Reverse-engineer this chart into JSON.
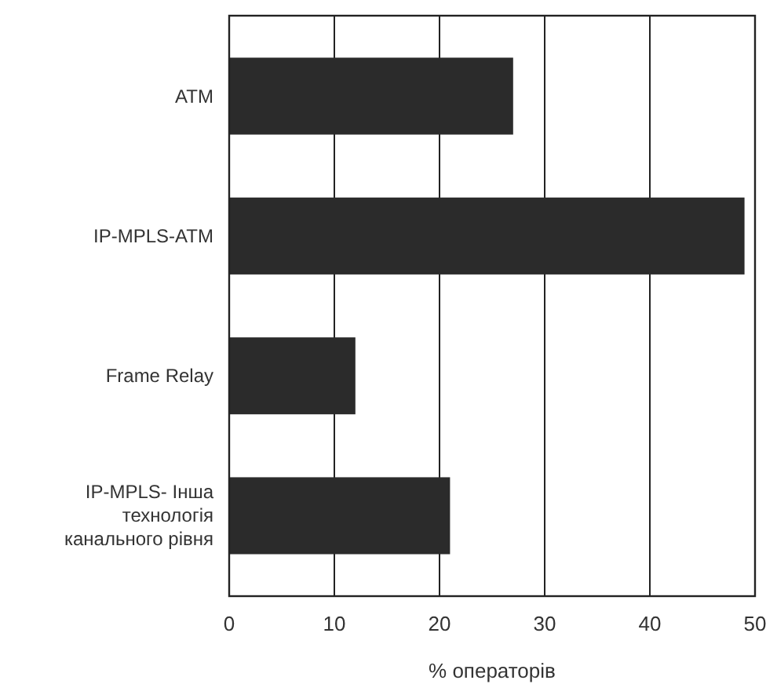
{
  "chart_data": {
    "type": "bar",
    "orientation": "horizontal",
    "categories": [
      "ATM",
      "IP-MPLS-ATM",
      "Frame Relay",
      "IP-MPLS- Інша технологія канального рівня"
    ],
    "values": [
      27,
      49,
      12,
      21
    ],
    "color": "#2b2b2b",
    "xlim": [
      0,
      50
    ],
    "xticks": [
      0,
      10,
      20,
      30,
      40,
      50
    ],
    "xlabel": "% операторів",
    "grid": "x"
  }
}
